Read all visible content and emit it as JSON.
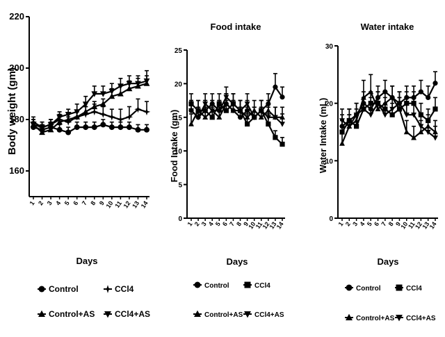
{
  "chart_data": [
    {
      "type": "line",
      "title": "",
      "xlabel": "Days",
      "ylabel": "Body weight (gm)",
      "ylim": [
        150,
        220
      ],
      "yticks": [
        160,
        180,
        200,
        220
      ],
      "x": [
        1,
        2,
        3,
        4,
        5,
        6,
        7,
        8,
        9,
        10,
        11,
        12,
        13,
        14
      ],
      "x_tick_labels": [
        "1",
        "2",
        "3",
        "4",
        "5",
        "6",
        "7",
        "8",
        "9",
        "10",
        "11",
        "12",
        "13",
        "14"
      ],
      "series": [
        {
          "name": "Control",
          "marker": "circle",
          "values": [
            177,
            176,
            177,
            176,
            175,
            177,
            177,
            177,
            178,
            177,
            177,
            177,
            176,
            176
          ],
          "errors": [
            2,
            2,
            2,
            2,
            2,
            2,
            2,
            2,
            2,
            2,
            2,
            2,
            2,
            2
          ]
        },
        {
          "name": "CCl4",
          "marker": "star",
          "values": [
            179,
            177,
            178,
            180,
            179,
            181,
            182,
            183,
            182,
            181,
            180,
            181,
            184,
            183
          ],
          "errors": [
            2,
            2,
            2,
            2,
            2,
            2,
            3,
            3,
            3,
            3,
            4,
            4,
            4,
            4
          ]
        },
        {
          "name": "Control+AS",
          "marker": "triangle-up",
          "values": [
            178,
            175,
            176,
            179,
            180,
            181,
            183,
            185,
            186,
            189,
            190,
            192,
            193,
            194
          ],
          "errors": [
            2,
            2,
            2,
            2,
            2,
            2,
            2,
            2,
            2,
            3,
            3,
            3,
            3,
            3
          ]
        },
        {
          "name": "CCl4+AS",
          "marker": "triangle-down",
          "values": [
            178,
            177,
            178,
            181,
            182,
            183,
            186,
            190,
            190,
            191,
            193,
            194,
            194,
            195
          ],
          "errors": [
            2,
            2,
            2,
            2,
            2,
            3,
            3,
            3,
            3,
            3,
            3,
            3,
            3,
            4
          ]
        }
      ]
    },
    {
      "type": "line",
      "title": "Food intake",
      "xlabel": "Days",
      "ylabel": "Food Intake (gm)",
      "ylim": [
        0,
        25
      ],
      "yticks": [
        0,
        5,
        10,
        15,
        20,
        25
      ],
      "x": [
        1,
        2,
        3,
        4,
        5,
        6,
        7,
        8,
        9,
        10,
        11,
        12,
        13,
        14
      ],
      "x_tick_labels": [
        "1",
        "2",
        "3",
        "4",
        "5",
        "6",
        "7",
        "8",
        "9",
        "10",
        "11",
        "12",
        "13",
        "14"
      ],
      "series": [
        {
          "name": "Control",
          "marker": "circle",
          "values": [
            16,
            15,
            16,
            17,
            16,
            17,
            16,
            15,
            16,
            15,
            16,
            17,
            19.5,
            18
          ],
          "errors": [
            1.5,
            1.5,
            1.5,
            1.5,
            1.5,
            1.5,
            1.5,
            1.5,
            1.5,
            1.5,
            1.5,
            1.5,
            2,
            1.5
          ]
        },
        {
          "name": "CCl4",
          "marker": "square",
          "values": [
            17,
            16,
            16,
            15,
            17,
            16,
            17,
            16,
            14,
            15,
            16,
            14,
            12,
            11
          ],
          "errors": [
            1.5,
            1.5,
            1.5,
            1.5,
            1.5,
            1.5,
            1.5,
            1.5,
            1.5,
            1.5,
            1.5,
            1.5,
            1,
            1
          ]
        },
        {
          "name": "Control+AS",
          "marker": "triangle-up",
          "values": [
            14,
            16,
            15,
            16,
            15,
            17,
            16,
            16,
            15,
            16,
            15,
            16,
            15,
            15
          ],
          "errors": [
            1.5,
            1.5,
            1.5,
            1.5,
            1.5,
            1.5,
            1.5,
            1.5,
            1.5,
            1.5,
            1.5,
            1.5,
            1.5,
            1.5
          ]
        },
        {
          "name": "CCl4+AS",
          "marker": "triangle-down",
          "values": [
            16,
            15,
            17,
            16,
            16,
            18,
            17,
            16,
            17,
            15,
            16,
            15,
            15,
            14
          ],
          "errors": [
            1.5,
            1.5,
            1.5,
            1.5,
            1.5,
            1.5,
            1.5,
            1.5,
            1.5,
            1.5,
            1.5,
            1.5,
            1.5,
            1.5
          ]
        }
      ]
    },
    {
      "type": "line",
      "title": "Water intake",
      "xlabel": "Days",
      "ylabel": "Water Intake (mL)",
      "ylim": [
        0,
        30
      ],
      "yticks": [
        0,
        10,
        20,
        30
      ],
      "x": [
        1,
        2,
        3,
        4,
        5,
        6,
        7,
        8,
        9,
        10,
        11,
        12,
        13,
        14
      ],
      "x_tick_labels": [
        "1",
        "2",
        "3",
        "4",
        "5",
        "6",
        "7",
        "8",
        "9",
        "10",
        "11",
        "12",
        "13",
        "14"
      ],
      "series": [
        {
          "name": "Control",
          "marker": "circle",
          "values": [
            16,
            17,
            18,
            20,
            19,
            21,
            22,
            21,
            20,
            21,
            21,
            22,
            21,
            23.5
          ],
          "errors": [
            2,
            2,
            2,
            2,
            2,
            2,
            2,
            2,
            2,
            2,
            2,
            2,
            2,
            2
          ]
        },
        {
          "name": "CCl4",
          "marker": "square",
          "values": [
            15,
            17,
            16,
            19,
            20,
            20,
            19,
            18,
            19,
            20,
            20,
            18,
            17,
            19
          ],
          "errors": [
            2,
            2,
            2,
            2,
            2,
            2,
            2,
            2,
            2,
            2,
            2,
            2,
            2,
            2
          ]
        },
        {
          "name": "Control+AS",
          "marker": "triangle-up",
          "values": [
            13,
            16,
            17,
            21,
            22,
            19,
            20,
            21,
            19,
            15,
            14,
            15,
            16,
            15
          ],
          "errors": [
            2,
            2,
            2,
            3,
            3,
            2,
            2,
            2,
            2,
            2,
            2,
            2,
            2,
            2
          ]
        },
        {
          "name": "CCl4+AS",
          "marker": "triangle-down",
          "values": [
            17,
            16,
            18,
            19,
            18,
            20,
            18,
            19,
            20,
            18,
            18,
            16,
            15,
            14
          ],
          "errors": [
            2,
            2,
            2,
            2,
            2,
            2,
            2,
            2,
            2,
            2,
            2,
            2,
            2,
            2
          ]
        }
      ]
    }
  ],
  "legends": [
    {
      "rows": [
        [
          "Control",
          "CCl4"
        ],
        [
          "Control+AS",
          "CCl4+AS"
        ]
      ],
      "markers": [
        [
          "circle",
          "star"
        ],
        [
          "triangle-up",
          "triangle-down"
        ]
      ]
    },
    {
      "rows": [
        [
          "Control",
          "CCl4"
        ],
        [
          "Control+AS",
          "CCl4+AS"
        ]
      ],
      "markers": [
        [
          "circle",
          "square"
        ],
        [
          "triangle-up",
          "triangle-down"
        ]
      ]
    },
    {
      "rows": [
        [
          "Control",
          "CCl4"
        ],
        [
          "Control+AS",
          "CCl4+AS"
        ]
      ],
      "markers": [
        [
          "circle",
          "square"
        ],
        [
          "triangle-up",
          "triangle-down"
        ]
      ]
    }
  ],
  "colors": {
    "ink": "#000000",
    "background": "#ffffff"
  }
}
